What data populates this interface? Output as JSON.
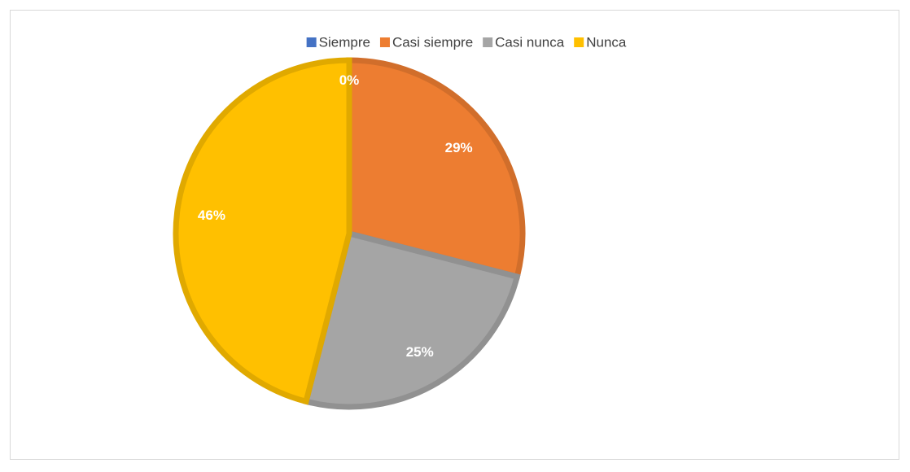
{
  "chart_data": {
    "type": "pie",
    "categories": [
      "Siempre",
      "Casi siempre",
      "Casi nunca",
      "Nunca"
    ],
    "values": [
      0,
      29,
      25,
      46
    ],
    "value_labels": [
      "0%",
      "29%",
      "25%",
      "46%"
    ],
    "colors": [
      "#4472c4",
      "#ed7d31",
      "#a5a5a5",
      "#ffc000"
    ],
    "legend": "top"
  }
}
